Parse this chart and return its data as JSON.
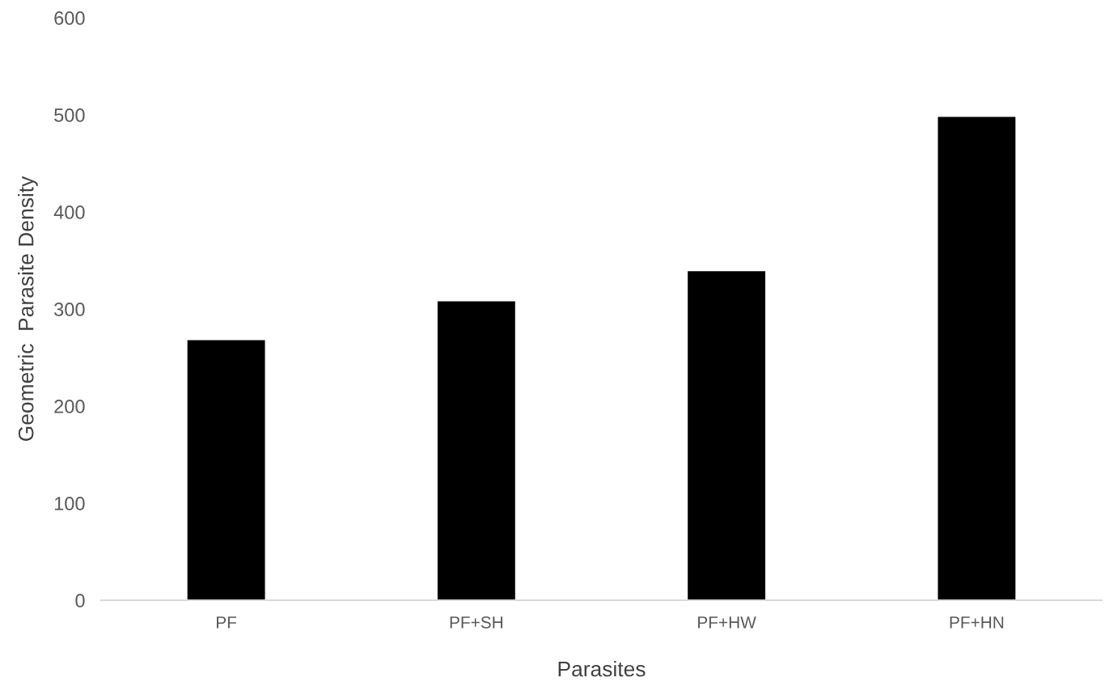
{
  "chart_data": {
    "type": "bar",
    "xlabel": "Parasites",
    "ylabel": "Geometric  Parasite Density",
    "categories": [
      "PF",
      "PF+SH",
      "PF+HW",
      "PF+HN"
    ],
    "values": [
      268,
      308,
      339,
      498
    ],
    "color": "#000000",
    "ylim": [
      0,
      600
    ],
    "yticks": [
      0,
      100,
      200,
      300,
      400,
      500,
      600
    ],
    "grid": false,
    "legend": false
  }
}
